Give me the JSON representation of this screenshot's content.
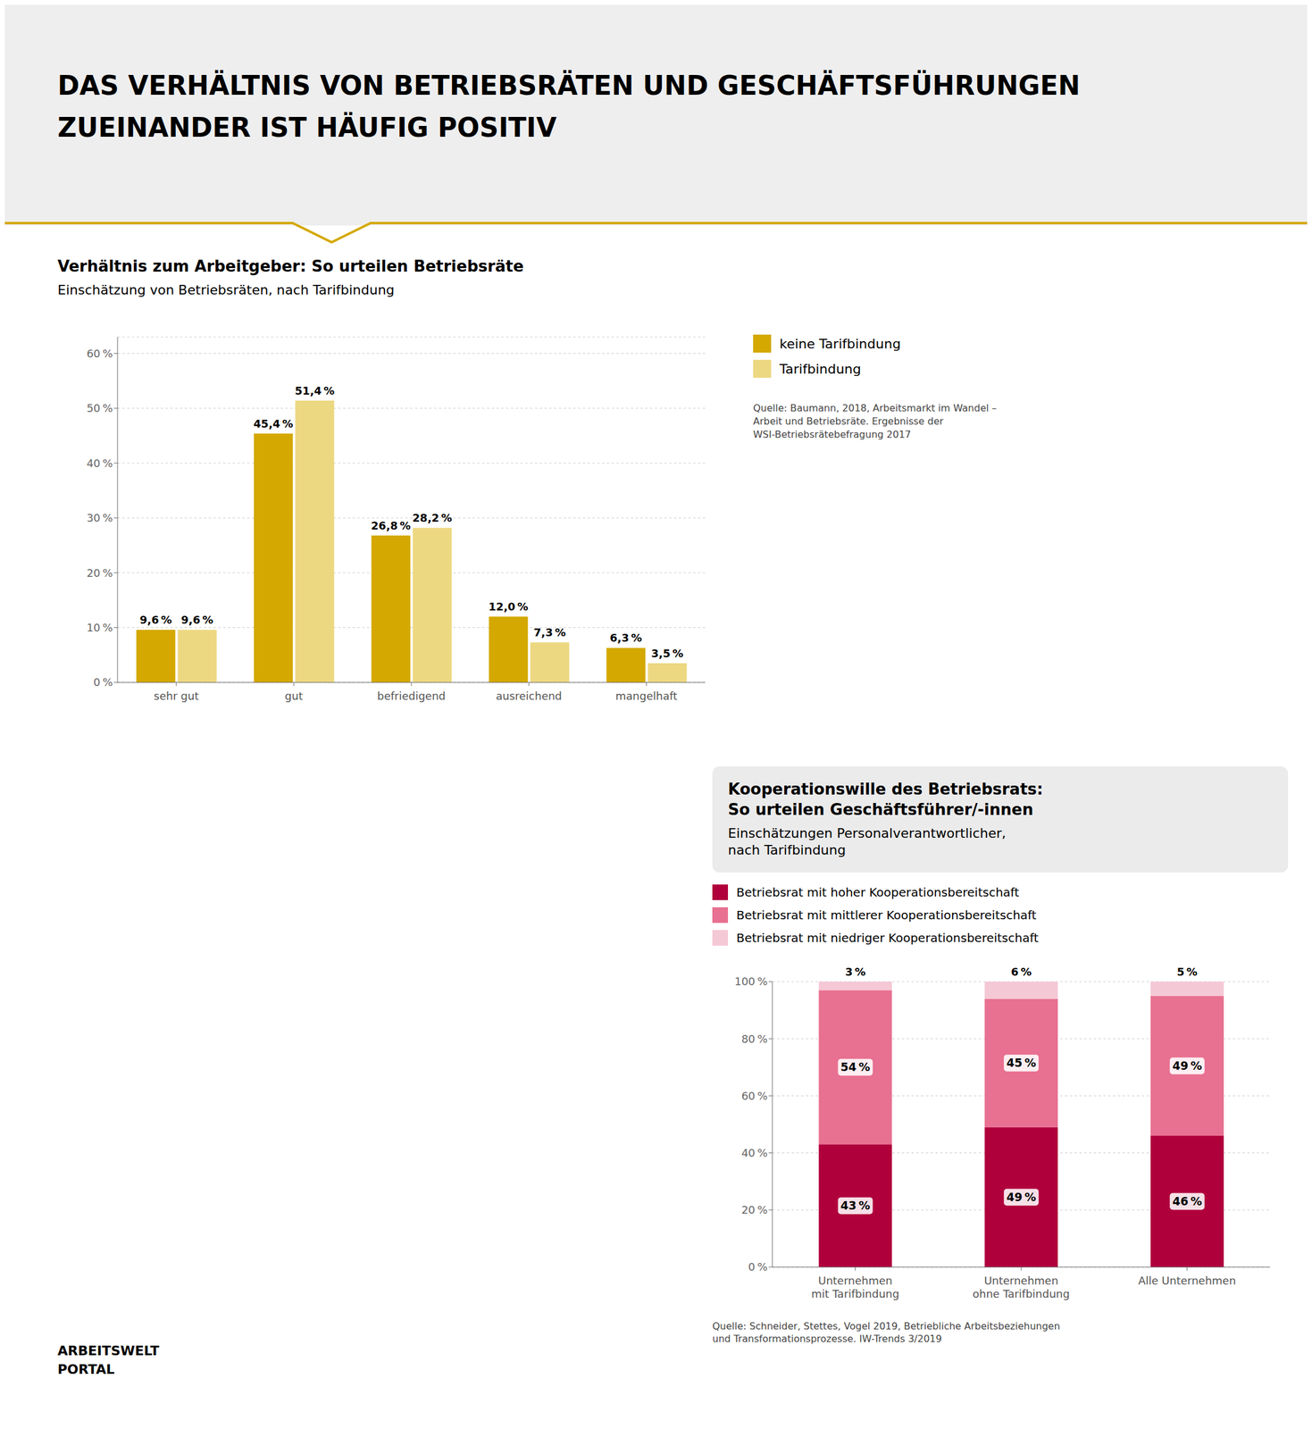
{
  "title": "DAS VERHÄLTNIS VON BETRIEBSRÄTEN UND GESCHÄFTSFÜHRUNGEN\nZUEINANDER IST HÄUFIG POSITIV",
  "annotations": [
    "ARBEITSWELT",
    "PORTAL"
  ],
  "chart_data": [
    {
      "type": "bar",
      "title": "Verhältnis zum Arbeitgeber: So urteilen Betriebsräte",
      "subtitle": "Einschätzung von Betriebsräten, nach Tarifbindung",
      "categories": [
        "sehr gut",
        "gut",
        "befriedigend",
        "ausreichend",
        "mangelhaft"
      ],
      "series": [
        {
          "name": "keine Tarifbindung",
          "color": "#D4A800",
          "values": [
            9.6,
            45.4,
            26.8,
            12.0,
            6.3
          ],
          "value_labels": [
            "9,6 %",
            "45,4 %",
            "26,8 %",
            "12,0 %",
            "6,3 %"
          ]
        },
        {
          "name": "Tarifbindung",
          "color": "#EDD882",
          "values": [
            9.6,
            51.4,
            28.2,
            7.3,
            3.5
          ],
          "value_labels": [
            "9,6 %",
            "51,4 %",
            "28,2 %",
            "7,3 %",
            "3,5 %"
          ]
        }
      ],
      "ylim": [
        0,
        63
      ],
      "yticks": [
        {
          "value": 0,
          "label": "0 %"
        },
        {
          "value": 10,
          "label": "10 %"
        },
        {
          "value": 20,
          "label": "20 %"
        },
        {
          "value": 30,
          "label": "30 %"
        },
        {
          "value": 40,
          "label": "40 %"
        },
        {
          "value": 50,
          "label": "50 %"
        },
        {
          "value": 60,
          "label": "60 %"
        }
      ],
      "grid": true,
      "legend": "right",
      "data_labels": true,
      "annotations": [
        "Quelle: Baumann, 2018, Arbeitsmarkt im Wandel –\nArbeit und Betriebsräte. Ergebnisse der\nWSI-Betriebsrätebefragung 2017"
      ]
    },
    {
      "type": "bar",
      "title": "Kooperationswille des Betriebsrats:\nSo urteilen Geschäftsführer/-innen",
      "subtitle": "Einschätzungen Personalverantwortlicher,\nnach Tarifbindung",
      "categories": [
        "Unternehmen\nmit Tarifbindung",
        "Unternehmen\nohne Tarifbindung",
        "Alle Unternehmen"
      ],
      "series": [
        {
          "name": "Betriebsrat mit hoher Kooperationsbereitschaft",
          "color": "#B0003C",
          "values": [
            43,
            49,
            46
          ],
          "value_labels": [
            "43 %",
            "49 %",
            "46 %"
          ]
        },
        {
          "name": "Betriebsrat mit mittlerer Kooperationsbereitschaft",
          "color": "#E87090",
          "values": [
            54,
            45,
            49
          ],
          "value_labels": [
            "54 %",
            "45 %",
            "49 %"
          ]
        },
        {
          "name": "Betriebsrat mit niedriger Kooperationsbereitschaft",
          "color": "#F5C8D5",
          "values": [
            3,
            6,
            5
          ],
          "value_labels": [
            "3 %",
            "6 %",
            "5 %"
          ]
        }
      ],
      "stacked": true,
      "ylim": [
        0,
        100
      ],
      "yticks": [
        {
          "value": 0,
          "label": "0 %"
        },
        {
          "value": 20,
          "label": "20 %"
        },
        {
          "value": 40,
          "label": "40 %"
        },
        {
          "value": 60,
          "label": "60 %"
        },
        {
          "value": 80,
          "label": "80 %"
        },
        {
          "value": 100,
          "label": "100 %"
        }
      ],
      "grid": true,
      "legend": "top",
      "data_labels": true,
      "annotations": [
        "Quelle: Schneider, Stettes, Vogel 2019, Betriebliche Arbeitsbeziehungen\nund Transformationsprozesse. IW-Trends 3/2019"
      ]
    }
  ]
}
